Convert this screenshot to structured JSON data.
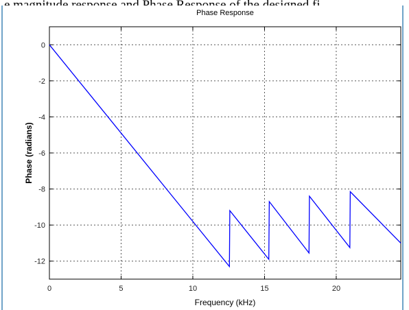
{
  "caption": "e magnitude response and Phase Response of the designed fi",
  "chart_data": {
    "type": "line",
    "title": "Phase Response",
    "xlabel": "Frequency (kHz)",
    "ylabel": "Phase (radians)",
    "xlim": [
      0,
      24.5
    ],
    "ylim": [
      -13,
      1
    ],
    "xticks": [
      0,
      5,
      10,
      15,
      20
    ],
    "yticks": [
      0,
      -2,
      -4,
      -6,
      -8,
      -10,
      -12
    ],
    "grid": true,
    "line_color": "#0000ff",
    "series": [
      {
        "x": [
          0,
          12.55,
          12.58,
          15.3,
          15.33,
          18.1,
          18.13,
          20.95,
          20.98,
          24.5
        ],
        "y": [
          0,
          -12.3,
          -9.2,
          -11.9,
          -8.7,
          -11.55,
          -8.4,
          -11.25,
          -8.15,
          -11.0
        ]
      }
    ]
  }
}
